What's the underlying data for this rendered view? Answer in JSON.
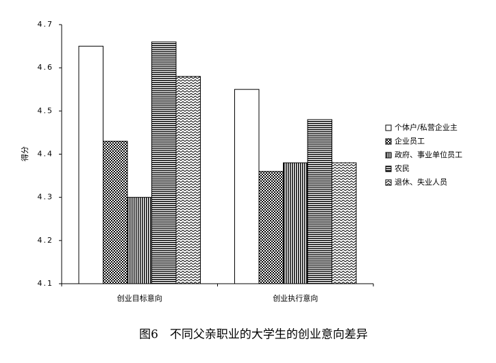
{
  "chart_data": {
    "type": "bar",
    "y_label": "得分",
    "categories": [
      "创业目标意向",
      "创业执行意向"
    ],
    "series": [
      {
        "name": "个体户/私营企业主",
        "pattern": "none",
        "values": [
          4.65,
          4.55
        ]
      },
      {
        "name": "企业员工",
        "pattern": "checker",
        "values": [
          4.43,
          4.36
        ]
      },
      {
        "name": "政府、事业单位员工",
        "pattern": "vertical",
        "values": [
          4.3,
          4.38
        ]
      },
      {
        "name": "农民",
        "pattern": "horizontal",
        "values": [
          4.66,
          4.48
        ]
      },
      {
        "name": "退休、失业人员",
        "pattern": "zigzag",
        "values": [
          4.58,
          4.38
        ]
      }
    ],
    "ylim": [
      4.1,
      4.7
    ],
    "yticks": [
      4.1,
      4.2,
      4.3,
      4.4,
      4.5,
      4.6,
      4.7
    ],
    "legend": "right",
    "caption": "图6　不同父亲职业的大学生的创业意向差异"
  }
}
